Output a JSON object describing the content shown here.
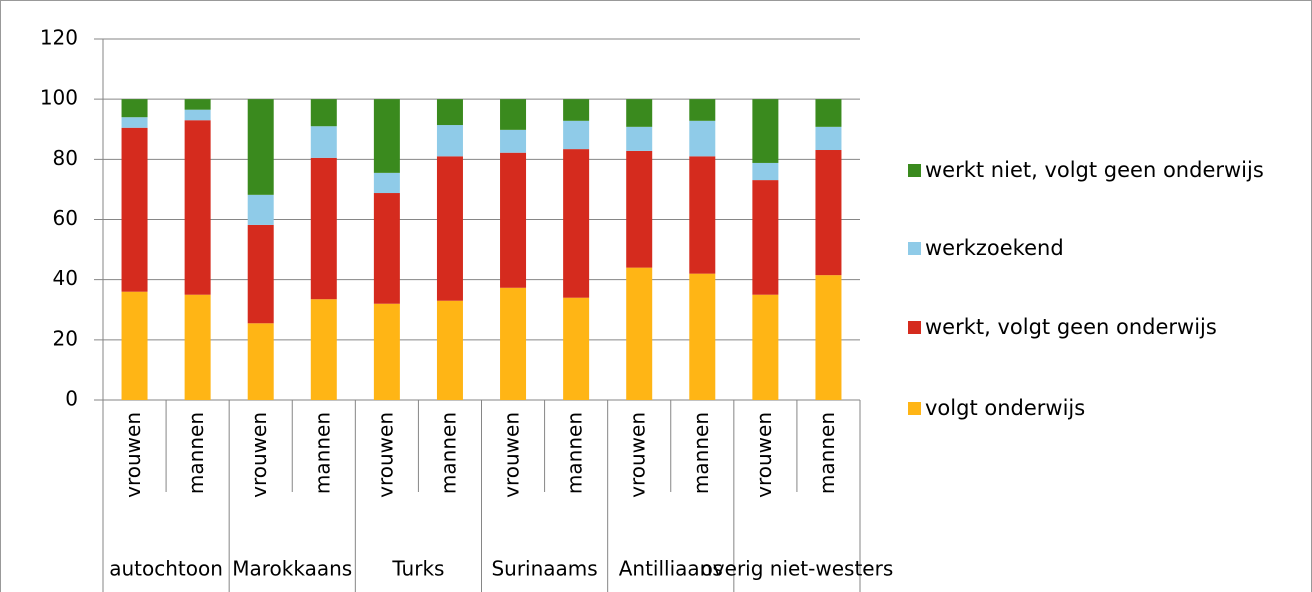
{
  "chart_data": {
    "type": "stacked_bar",
    "categories": [
      "vrouwen",
      "mannen",
      "vrouwen",
      "mannen",
      "vrouwen",
      "mannen",
      "vrouwen",
      "mannen",
      "vrouwen",
      "mannen",
      "vrouwen",
      "mannen"
    ],
    "groups": [
      "autochtoon",
      "Marokkaans",
      "Turks",
      "Surinaams",
      "Antilliaans",
      "overig niet-westers"
    ],
    "series": [
      {
        "name": "volgt onderwijs",
        "color": "#ffb515",
        "values": [
          36,
          35,
          25.5,
          33.5,
          32,
          33,
          37.3,
          34,
          44,
          42,
          35,
          41.5
        ]
      },
      {
        "name": "werkt, volgt geen onderwijs",
        "color": "#d52b1e",
        "values": [
          54.5,
          58,
          32.7,
          47,
          36.8,
          48,
          44.9,
          49.4,
          38.8,
          39,
          38.1,
          41.6
        ]
      },
      {
        "name": "werkzoekend",
        "color": "#8fcbe8",
        "values": [
          3.5,
          3.5,
          10,
          10.5,
          6.7,
          10.4,
          7.6,
          9.4,
          8,
          11.8,
          5.7,
          7.7
        ]
      },
      {
        "name": "werkt niet, volgt geen onderwijs",
        "color": "#3a8a1e",
        "values": [
          6,
          3.5,
          31.8,
          9,
          24.5,
          8.6,
          10.2,
          7.2,
          9.2,
          7.2,
          21.2,
          9.2
        ]
      }
    ],
    "ylim": [
      0,
      120
    ],
    "yticks": [
      0,
      20,
      40,
      60,
      80,
      100,
      120
    ],
    "grid": true
  }
}
